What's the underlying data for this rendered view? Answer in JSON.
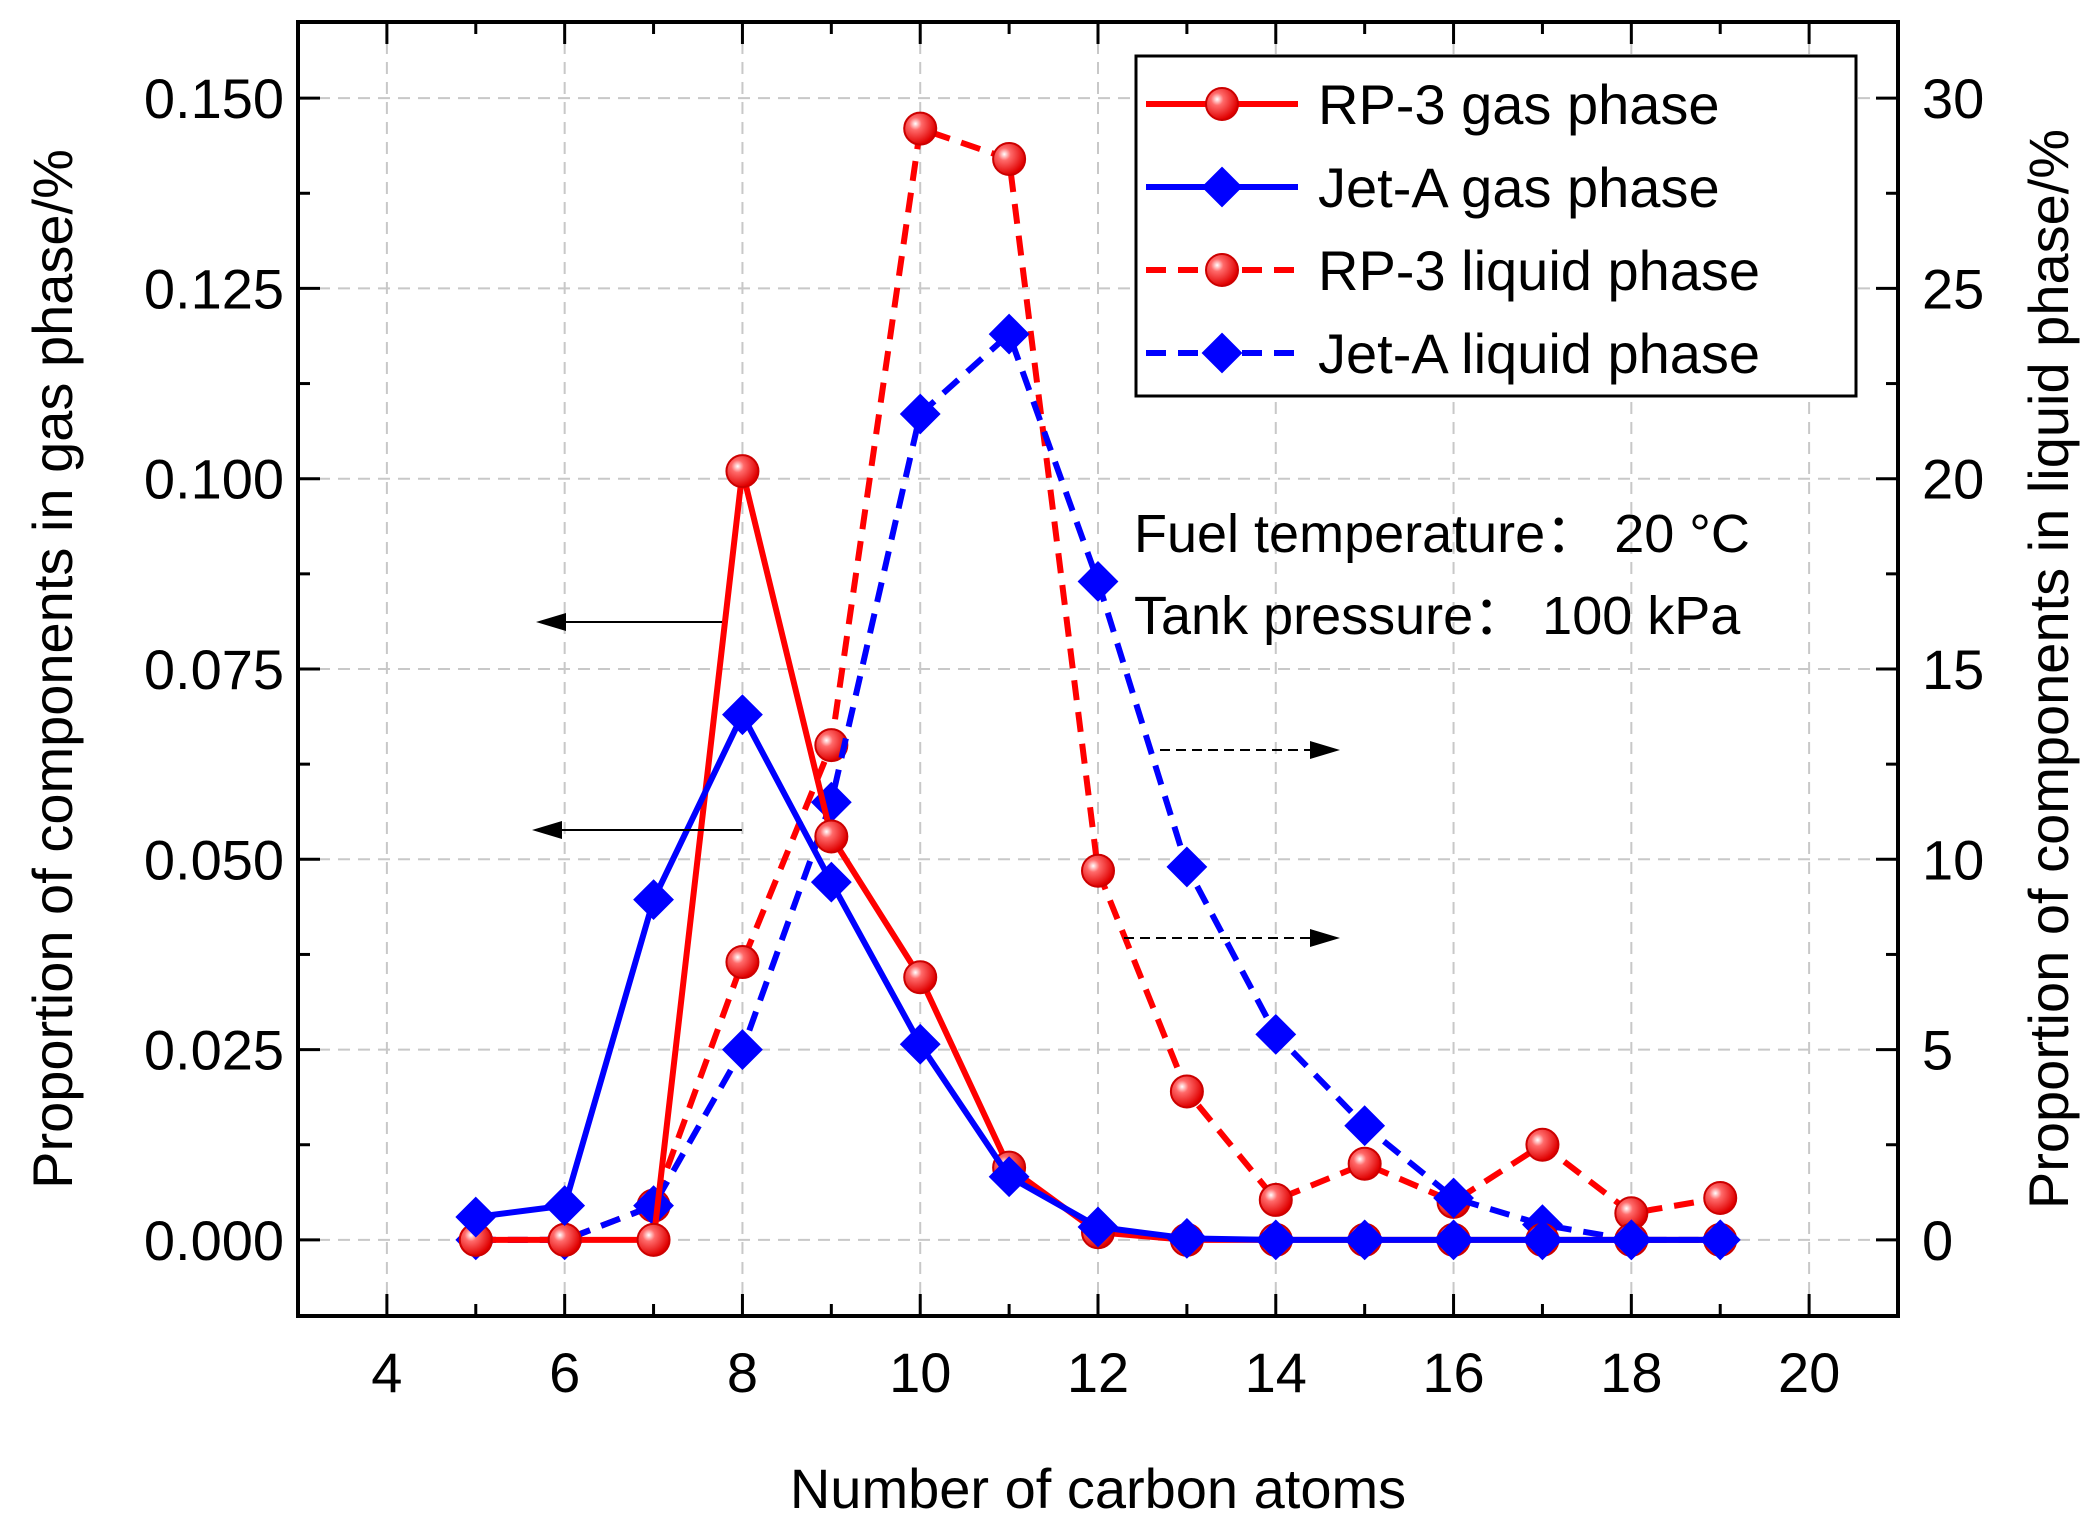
{
  "chart_data": {
    "type": "line",
    "title": "",
    "xlabel": "Number of carbon atoms",
    "ylabel_left": "Proportion of components in gas phase/%",
    "ylabel_right": "Proportion of components in liquid phase/%",
    "xlim": [
      3,
      21
    ],
    "ylim_left": [
      -0.01,
      0.16
    ],
    "ylim_right": [
      -2,
      32
    ],
    "grid": true,
    "x_ticks": [
      4,
      6,
      8,
      10,
      12,
      14,
      16,
      18,
      20
    ],
    "x_tick_labels": [
      "4",
      "6",
      "8",
      "10",
      "12",
      "14",
      "16",
      "18",
      "20"
    ],
    "y_left_ticks": [
      0,
      0.025,
      0.05,
      0.075,
      0.1,
      0.125,
      0.15
    ],
    "y_left_tick_labels": [
      "0.000",
      "0.025",
      "0.050",
      "0.075",
      "0.100",
      "0.125",
      "0.150"
    ],
    "y_right_ticks": [
      0,
      5,
      10,
      15,
      20,
      25,
      30
    ],
    "y_right_tick_labels": [
      "0",
      "5",
      "10",
      "15",
      "20",
      "25",
      "30"
    ],
    "legend_position": "top-right",
    "series": [
      {
        "name": "RP-3 gas phase",
        "axis": "left",
        "color": "#ff0000",
        "line": "solid",
        "marker": "circle",
        "x": [
          5,
          6,
          7,
          8,
          9,
          10,
          11,
          12,
          13,
          14,
          15,
          16,
          17,
          18,
          19
        ],
        "values": [
          0.0,
          0.0,
          0.0,
          0.101,
          0.053,
          0.0345,
          0.0095,
          0.001,
          0.0,
          0.0,
          0.0,
          0.0,
          0.0,
          0.0,
          0.0
        ]
      },
      {
        "name": "Jet-A gas phase",
        "axis": "left",
        "color": "#0000ff",
        "line": "solid",
        "marker": "diamond",
        "x": [
          5,
          6,
          7,
          8,
          9,
          10,
          11,
          12,
          13,
          14,
          15,
          16,
          17,
          18,
          19
        ],
        "values": [
          0.003,
          0.0045,
          0.0447,
          0.069,
          0.047,
          0.0257,
          0.0083,
          0.0017,
          0.0002,
          0.0,
          0.0,
          0.0,
          0.0,
          0.0,
          0.0
        ]
      },
      {
        "name": "RP-3 liquid phase",
        "axis": "right",
        "color": "#ff0000",
        "line": "dashed",
        "marker": "circle",
        "x": [
          5,
          6,
          7,
          8,
          9,
          10,
          11,
          12,
          13,
          14,
          15,
          16,
          17,
          18,
          19
        ],
        "values": [
          0.0,
          0.0,
          0.9,
          7.3,
          13.0,
          29.2,
          28.4,
          9.7,
          3.9,
          1.05,
          2.0,
          1.0,
          2.5,
          0.7,
          1.1
        ]
      },
      {
        "name": "Jet-A liquid phase",
        "axis": "right",
        "color": "#0000ff",
        "line": "dashed",
        "marker": "diamond",
        "x": [
          5,
          6,
          7,
          8,
          9,
          10,
          11,
          12,
          13,
          14,
          15,
          16,
          17,
          18,
          19
        ],
        "values": [
          0.0,
          0.0,
          0.9,
          5.0,
          11.5,
          21.7,
          23.8,
          17.3,
          9.8,
          5.4,
          3.0,
          1.1,
          0.4,
          0.0,
          0.0
        ]
      }
    ],
    "annotations": [
      "Fuel temperature： 20 °C",
      "Tank pressure： 100 kPa"
    ],
    "arrows": [
      {
        "series": "RP-3 gas phase",
        "direction": "left",
        "style": "solid"
      },
      {
        "series": "Jet-A gas phase",
        "direction": "left",
        "style": "solid"
      },
      {
        "series": "Jet-A liquid phase",
        "direction": "right",
        "style": "dashed"
      },
      {
        "series": "RP-3 liquid phase",
        "direction": "right",
        "style": "dashed"
      }
    ]
  }
}
